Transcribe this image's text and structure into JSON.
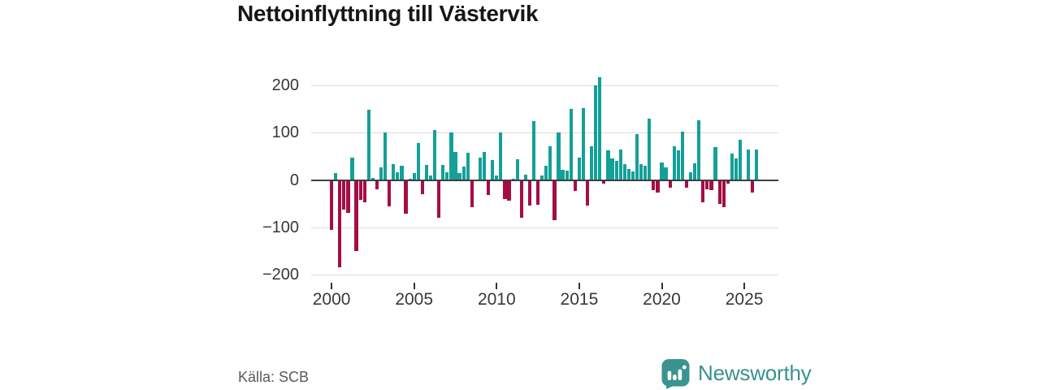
{
  "chart_data": {
    "type": "bar",
    "title": "Nettoinflyttning till Västervik",
    "frequency": "quarterly",
    "start_period": "2000Q1",
    "end_period": "2025Q4",
    "grid": true,
    "x_tick_labels": [
      "2000",
      "2005",
      "2010",
      "2015",
      "2020",
      "2025"
    ],
    "y_ticks": [
      200,
      100,
      0,
      -100,
      -200
    ],
    "y_tick_labels": [
      "200",
      "100",
      "0",
      "−100",
      "−200"
    ],
    "ylim": [
      -220,
      235
    ],
    "positive_color": "#14a099",
    "negative_color": "#a50d45",
    "values": [
      -105,
      15,
      -185,
      -62,
      -70,
      47,
      -150,
      -42,
      -48,
      148,
      4,
      -19,
      26,
      100,
      -55,
      33,
      17,
      30,
      -72,
      2,
      14,
      78,
      -30,
      32,
      10,
      105,
      -80,
      31,
      17,
      100,
      60,
      15,
      28,
      57,
      -58,
      -2,
      47,
      60,
      -32,
      42,
      10,
      100,
      -40,
      -43,
      2,
      44,
      -80,
      11,
      -54,
      125,
      -53,
      10,
      30,
      72,
      -85,
      100,
      21,
      20,
      150,
      -24,
      48,
      152,
      -54,
      72,
      200,
      217,
      -7,
      62,
      45,
      40,
      64,
      33,
      24,
      18,
      97,
      34,
      30,
      130,
      -22,
      -26,
      37,
      27,
      -17,
      71,
      63,
      102,
      -17,
      16,
      35,
      127,
      -47,
      -20,
      -22,
      70,
      -51,
      -57,
      -8,
      56,
      46,
      85,
      1,
      64,
      -27,
      64
    ]
  },
  "footer": {
    "source": "Källa: SCB",
    "brand": "Newsworthy"
  }
}
